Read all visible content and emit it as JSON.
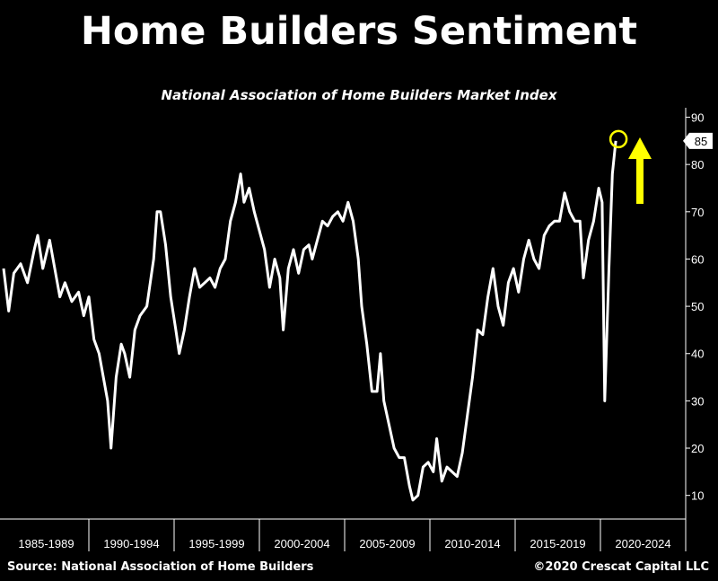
{
  "title": "Home Builders Sentiment",
  "subtitle": "National Association of Home Builders Market Index",
  "source": "Source: National Association of Home Builders",
  "copyright": "©2020 Crescat Capital LLC",
  "colors": {
    "background": "#000000",
    "line": "#ffffff",
    "highlight": "#ffff00"
  },
  "chart_data": {
    "type": "line",
    "title": "Home Builders Sentiment",
    "subtitle": "National Association of Home Builders Market Index",
    "xlabel": "",
    "ylabel": "",
    "x_categories": [
      "1985-1989",
      "1990-1994",
      "1995-1999",
      "2000-2004",
      "2005-2009",
      "2010-2014",
      "2015-2019",
      "2020-2024"
    ],
    "xlim": [
      1985,
      2025
    ],
    "ylim": [
      5,
      92
    ],
    "y_ticks": [
      10,
      20,
      30,
      40,
      50,
      60,
      70,
      80,
      90
    ],
    "axis_position": "right",
    "grid": false,
    "last_value_label": "85",
    "annotations": [
      "circle around latest value",
      "upward arrow"
    ],
    "series": [
      {
        "values": [
          [
            1985.0,
            58
          ],
          [
            1985.3,
            49
          ],
          [
            1985.6,
            57
          ],
          [
            1986.0,
            59
          ],
          [
            1986.4,
            55
          ],
          [
            1986.8,
            62
          ],
          [
            1987.0,
            65
          ],
          [
            1987.3,
            58
          ],
          [
            1987.7,
            64
          ],
          [
            1988.0,
            58
          ],
          [
            1988.3,
            52
          ],
          [
            1988.6,
            55
          ],
          [
            1989.0,
            51
          ],
          [
            1989.4,
            53
          ],
          [
            1989.7,
            48
          ],
          [
            1990.0,
            52
          ],
          [
            1990.3,
            43
          ],
          [
            1990.6,
            40
          ],
          [
            1990.9,
            34
          ],
          [
            1991.1,
            30
          ],
          [
            1991.3,
            20
          ],
          [
            1991.6,
            35
          ],
          [
            1991.9,
            42
          ],
          [
            1992.1,
            40
          ],
          [
            1992.4,
            35
          ],
          [
            1992.7,
            45
          ],
          [
            1993.0,
            48
          ],
          [
            1993.4,
            50
          ],
          [
            1993.8,
            60
          ],
          [
            1994.0,
            70
          ],
          [
            1994.2,
            70
          ],
          [
            1994.5,
            63
          ],
          [
            1994.8,
            52
          ],
          [
            1995.1,
            45
          ],
          [
            1995.3,
            40
          ],
          [
            1995.6,
            45
          ],
          [
            1995.9,
            52
          ],
          [
            1996.2,
            58
          ],
          [
            1996.5,
            54
          ],
          [
            1996.8,
            55
          ],
          [
            1997.1,
            56
          ],
          [
            1997.4,
            54
          ],
          [
            1997.7,
            58
          ],
          [
            1998.0,
            60
          ],
          [
            1998.3,
            68
          ],
          [
            1998.6,
            72
          ],
          [
            1998.9,
            78
          ],
          [
            1999.1,
            72
          ],
          [
            1999.4,
            75
          ],
          [
            1999.7,
            70
          ],
          [
            2000.0,
            66
          ],
          [
            2000.3,
            62
          ],
          [
            2000.6,
            54
          ],
          [
            2000.9,
            60
          ],
          [
            2001.2,
            56
          ],
          [
            2001.4,
            45
          ],
          [
            2001.7,
            58
          ],
          [
            2002.0,
            62
          ],
          [
            2002.3,
            57
          ],
          [
            2002.6,
            62
          ],
          [
            2002.9,
            63
          ],
          [
            2003.1,
            60
          ],
          [
            2003.4,
            64
          ],
          [
            2003.7,
            68
          ],
          [
            2004.0,
            67
          ],
          [
            2004.3,
            69
          ],
          [
            2004.6,
            70
          ],
          [
            2004.9,
            68
          ],
          [
            2005.2,
            72
          ],
          [
            2005.5,
            68
          ],
          [
            2005.8,
            60
          ],
          [
            2006.0,
            50
          ],
          [
            2006.3,
            42
          ],
          [
            2006.6,
            32
          ],
          [
            2006.9,
            32
          ],
          [
            2007.1,
            40
          ],
          [
            2007.3,
            30
          ],
          [
            2007.6,
            25
          ],
          [
            2007.9,
            20
          ],
          [
            2008.2,
            18
          ],
          [
            2008.5,
            18
          ],
          [
            2008.8,
            12
          ],
          [
            2009.0,
            9
          ],
          [
            2009.3,
            10
          ],
          [
            2009.6,
            16
          ],
          [
            2009.9,
            17
          ],
          [
            2010.2,
            15
          ],
          [
            2010.4,
            22
          ],
          [
            2010.7,
            13
          ],
          [
            2011.0,
            16
          ],
          [
            2011.3,
            15
          ],
          [
            2011.6,
            14
          ],
          [
            2011.9,
            19
          ],
          [
            2012.2,
            27
          ],
          [
            2012.5,
            35
          ],
          [
            2012.8,
            45
          ],
          [
            2013.1,
            44
          ],
          [
            2013.4,
            52
          ],
          [
            2013.7,
            58
          ],
          [
            2014.0,
            50
          ],
          [
            2014.3,
            46
          ],
          [
            2014.6,
            55
          ],
          [
            2014.9,
            58
          ],
          [
            2015.2,
            53
          ],
          [
            2015.5,
            60
          ],
          [
            2015.8,
            64
          ],
          [
            2016.1,
            60
          ],
          [
            2016.4,
            58
          ],
          [
            2016.7,
            65
          ],
          [
            2017.0,
            67
          ],
          [
            2017.3,
            68
          ],
          [
            2017.6,
            68
          ],
          [
            2017.9,
            74
          ],
          [
            2018.2,
            70
          ],
          [
            2018.5,
            68
          ],
          [
            2018.8,
            68
          ],
          [
            2019.0,
            56
          ],
          [
            2019.3,
            64
          ],
          [
            2019.6,
            68
          ],
          [
            2019.9,
            75
          ],
          [
            2020.1,
            72
          ],
          [
            2020.25,
            30
          ],
          [
            2020.5,
            58
          ],
          [
            2020.7,
            78
          ],
          [
            2020.9,
            85
          ]
        ]
      }
    ]
  }
}
